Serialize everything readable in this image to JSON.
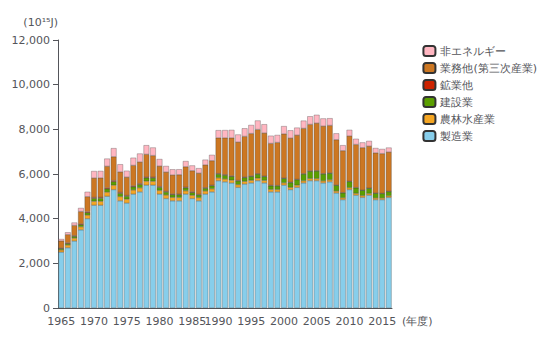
{
  "chart_data": {
    "type": "bar",
    "stacked": true,
    "ylabel": "(10¹⁵J)",
    "xlabel": "(年度)",
    "categories": [
      "1965",
      null,
      null,
      null,
      null,
      "1970",
      null,
      null,
      null,
      null,
      "1975",
      null,
      null,
      null,
      null,
      "1980",
      null,
      null,
      null,
      null,
      "1985",
      null,
      null,
      null,
      "1990",
      null,
      null,
      null,
      null,
      "1995",
      null,
      null,
      null,
      null,
      "2000",
      null,
      null,
      null,
      null,
      "2005",
      null,
      null,
      null,
      null,
      "2010",
      null,
      null,
      null,
      null,
      "2015",
      null
    ],
    "series": [
      {
        "name": "製造業",
        "color": "#87CEEB",
        "values": [
          2500,
          2700,
          3000,
          3500,
          4000,
          4600,
          4600,
          5000,
          5300,
          4800,
          4700,
          5100,
          5200,
          5500,
          5500,
          5100,
          4900,
          4800,
          4800,
          5100,
          4900,
          4800,
          5100,
          5200,
          5700,
          5650,
          5600,
          5400,
          5550,
          5600,
          5700,
          5600,
          5200,
          5200,
          5500,
          5300,
          5400,
          5600,
          5700,
          5700,
          5600,
          5650,
          5150,
          4850,
          5300,
          5050,
          4950,
          5050,
          4850,
          4850,
          4950
        ]
      },
      {
        "name": "農林水産業",
        "color": "#F5A623",
        "values": [
          100,
          120,
          130,
          140,
          160,
          180,
          180,
          190,
          200,
          190,
          175,
          185,
          185,
          180,
          175,
          165,
          160,
          155,
          150,
          150,
          148,
          143,
          140,
          138,
          130,
          128,
          125,
          122,
          120,
          118,
          115,
          112,
          108,
          105,
          105,
          102,
          100,
          98,
          96,
          94,
          92,
          90,
          87,
          83,
          87,
          83,
          81,
          79,
          76,
          74,
          72
        ]
      },
      {
        "name": "建設業",
        "color": "#5A9E00",
        "values": [
          60,
          70,
          80,
          90,
          110,
          130,
          135,
          145,
          160,
          145,
          130,
          145,
          148,
          148,
          148,
          140,
          130,
          125,
          123,
          130,
          125,
          120,
          123,
          135,
          165,
          168,
          170,
          168,
          172,
          175,
          178,
          174,
          164,
          160,
          195,
          210,
          245,
          300,
          330,
          340,
          310,
          292,
          257,
          221,
          275,
          248,
          238,
          228,
          210,
          200,
          193
        ]
      },
      {
        "name": "鉱業他",
        "color": "#CC2200",
        "values": [
          25,
          28,
          28,
          32,
          36,
          40,
          40,
          42,
          44,
          38,
          34,
          36,
          36,
          34,
          33,
          30,
          28,
          27,
          26,
          26,
          25,
          24,
          24,
          24,
          24,
          23,
          22,
          21,
          21,
          20,
          20,
          19,
          18,
          17,
          16,
          16,
          15,
          15,
          15,
          14,
          13,
          13,
          12,
          11,
          11,
          11,
          10,
          10,
          9,
          9,
          9
        ]
      },
      {
        "name": "業務他(第三次産業)",
        "color": "#CC7722",
        "values": [
          320,
          370,
          460,
          560,
          680,
          870,
          870,
          970,
          1070,
          920,
          820,
          920,
          970,
          1020,
          970,
          920,
          870,
          850,
          870,
          920,
          950,
          950,
          1020,
          1100,
          1600,
          1650,
          1700,
          1720,
          1820,
          1900,
          1980,
          1930,
          1880,
          1930,
          1980,
          1980,
          1980,
          2030,
          2080,
          2130,
          2130,
          2130,
          2030,
          1880,
          2030,
          1930,
          1900,
          1880,
          1800,
          1780,
          1760
        ]
      },
      {
        "name": "非エネルギー",
        "color": "#FFB6C1",
        "values": [
          80,
          100,
          125,
          155,
          215,
          310,
          310,
          340,
          380,
          340,
          285,
          340,
          375,
          405,
          358,
          312,
          268,
          250,
          240,
          250,
          232,
          222,
          232,
          258,
          340,
          345,
          355,
          335,
          360,
          380,
          400,
          390,
          342,
          333,
          345,
          345,
          334,
          344,
          360,
          370,
          340,
          320,
          282,
          242,
          272,
          252,
          233,
          233,
          215,
          205,
          196
        ]
      }
    ],
    "ylim": [
      0,
      12000
    ],
    "yticks": [
      0,
      {
        "value": 2000,
        "label": "2,000"
      },
      {
        "value": 4000,
        "label": "4,000"
      },
      {
        "value": 6000,
        "label": "6,000"
      },
      {
        "value": 8000,
        "label": "8,000"
      },
      {
        "value": 10000,
        "label": "10,000"
      },
      {
        "value": 12000,
        "label": "12,000"
      }
    ],
    "grid": false,
    "legend": "upper right"
  }
}
